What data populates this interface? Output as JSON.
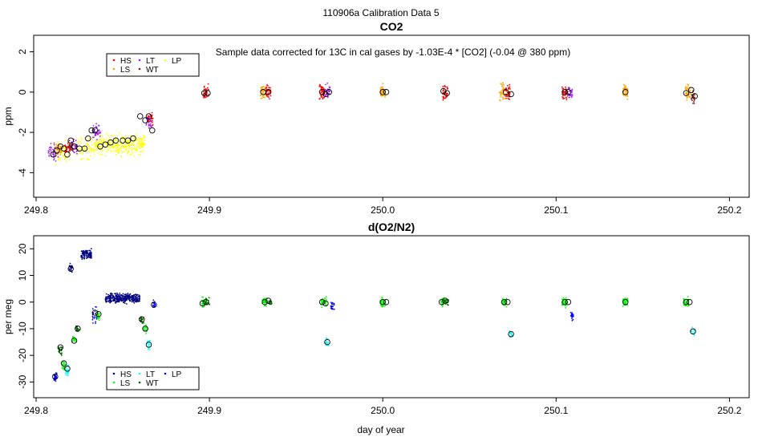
{
  "page_title": "110906a   Calibration Data 5",
  "x_axis_label": "day of year",
  "colors": {
    "HS": "#ff0000",
    "LS": "#ffa500",
    "LT": "#a020f0",
    "WT": "#8b1a1a",
    "LP": "#ffff00",
    "HS2": "#000080",
    "LS2": "#00ff00",
    "LT2": "#00ffff",
    "WT2": "#006400",
    "LP2": "#0000ff"
  },
  "chart_data": [
    {
      "type": "scatter",
      "title": "CO2",
      "annotation": "Sample data corrected for 13C in cal gases by -1.03E-4 * [CO2] (-0.04 @ 380 ppm)",
      "xlabel": "",
      "ylabel": "ppm",
      "xlim": [
        249.8,
        250.21
      ],
      "ylim": [
        -5.1,
        2.7
      ],
      "xticks": [
        249.8,
        249.9,
        250.0,
        250.1,
        250.2
      ],
      "xtick_labels": [
        "249.8",
        "249.9",
        "250.0",
        "250.1",
        "250.2"
      ],
      "yticks": [
        -4,
        -2,
        0,
        2
      ],
      "ytick_labels": [
        "-4",
        "-2",
        "0",
        "2"
      ],
      "legend": {
        "position": "top-left",
        "entries": [
          {
            "label": "HS",
            "color": "#ff0000"
          },
          {
            "label": "LS",
            "color": "#ffa500"
          },
          {
            "label": "LT",
            "color": "#a020f0"
          },
          {
            "label": "WT",
            "color": "#8b1a1a"
          },
          {
            "label": "LP",
            "color": "#ffff00"
          }
        ]
      },
      "clusters": [
        {
          "series": "LP",
          "x": 249.815,
          "y": -3.0,
          "spread_y": 0.8,
          "width": 0.009,
          "count": 55
        },
        {
          "series": "LP",
          "x": 249.828,
          "y": -2.8,
          "spread_y": 0.8,
          "width": 0.009,
          "count": 55
        },
        {
          "series": "LP",
          "x": 249.848,
          "y": -2.6,
          "spread_y": 0.7,
          "width": 0.03,
          "count": 320
        },
        {
          "series": "LT",
          "x": 249.81,
          "y": -3.0,
          "spread_y": 0.6,
          "width": 0.006,
          "count": 45
        },
        {
          "series": "LT",
          "x": 249.822,
          "y": -2.7,
          "spread_y": 0.5,
          "width": 0.004,
          "count": 40
        },
        {
          "series": "LT",
          "x": 249.835,
          "y": -2.0,
          "spread_y": 0.5,
          "width": 0.005,
          "count": 40
        },
        {
          "series": "HS",
          "x": 249.818,
          "y": -2.8,
          "spread_y": 0.4,
          "width": 0.003,
          "count": 30
        },
        {
          "series": "HS",
          "x": 249.866,
          "y": -1.4,
          "spread_y": 0.5,
          "width": 0.003,
          "count": 30
        },
        {
          "series": "LS",
          "x": 249.813,
          "y": -2.9,
          "spread_y": 0.4,
          "width": 0.003,
          "count": 30
        },
        {
          "series": "WT",
          "x": 249.82,
          "y": -2.7,
          "spread_y": 0.4,
          "width": 0.003,
          "count": 25
        },
        {
          "series": "LT",
          "x": 249.865,
          "y": -1.6,
          "spread_y": 0.5,
          "width": 0.003,
          "count": 30
        },
        {
          "series": "HS",
          "x": 249.898,
          "y": 0.0,
          "spread_y": 0.6,
          "width": 0.003,
          "count": 40
        },
        {
          "series": "LS",
          "x": 249.931,
          "y": 0.0,
          "spread_y": 0.5,
          "width": 0.003,
          "count": 40
        },
        {
          "series": "HS",
          "x": 249.934,
          "y": 0.0,
          "spread_y": 0.5,
          "width": 0.003,
          "count": 40
        },
        {
          "series": "HS",
          "x": 249.965,
          "y": 0.0,
          "spread_y": 0.6,
          "width": 0.003,
          "count": 40
        },
        {
          "series": "LT",
          "x": 249.968,
          "y": 0.0,
          "spread_y": 0.5,
          "width": 0.003,
          "count": 35
        },
        {
          "series": "LS",
          "x": 250.0,
          "y": 0.0,
          "spread_y": 0.5,
          "width": 0.003,
          "count": 40
        },
        {
          "series": "HS",
          "x": 250.036,
          "y": 0.0,
          "spread_y": 0.6,
          "width": 0.003,
          "count": 40
        },
        {
          "series": "LS",
          "x": 250.069,
          "y": 0.0,
          "spread_y": 0.6,
          "width": 0.003,
          "count": 40
        },
        {
          "series": "HS",
          "x": 250.072,
          "y": 0.0,
          "spread_y": 0.6,
          "width": 0.003,
          "count": 40
        },
        {
          "series": "HS",
          "x": 250.105,
          "y": 0.0,
          "spread_y": 0.6,
          "width": 0.003,
          "count": 40
        },
        {
          "series": "LT",
          "x": 250.108,
          "y": 0.0,
          "spread_y": 0.5,
          "width": 0.003,
          "count": 30
        },
        {
          "series": "LS",
          "x": 250.14,
          "y": 0.0,
          "spread_y": 0.5,
          "width": 0.003,
          "count": 40
        },
        {
          "series": "LS",
          "x": 250.176,
          "y": 0.0,
          "spread_y": 0.6,
          "width": 0.003,
          "count": 40
        },
        {
          "series": "WT",
          "x": 250.179,
          "y": -0.3,
          "spread_y": 0.5,
          "width": 0.002,
          "count": 25
        }
      ],
      "means": [
        {
          "x": 249.81,
          "y": -3.1
        },
        {
          "x": 249.812,
          "y": -2.9
        },
        {
          "x": 249.814,
          "y": -2.7
        },
        {
          "x": 249.816,
          "y": -2.8
        },
        {
          "x": 249.818,
          "y": -3.1
        },
        {
          "x": 249.82,
          "y": -2.4
        },
        {
          "x": 249.822,
          "y": -2.7
        },
        {
          "x": 249.825,
          "y": -2.8
        },
        {
          "x": 249.828,
          "y": -2.8
        },
        {
          "x": 249.83,
          "y": -2.3
        },
        {
          "x": 249.832,
          "y": -1.9
        },
        {
          "x": 249.834,
          "y": -1.9
        },
        {
          "x": 249.837,
          "y": -2.7
        },
        {
          "x": 249.84,
          "y": -2.6
        },
        {
          "x": 249.843,
          "y": -2.5
        },
        {
          "x": 249.846,
          "y": -2.4
        },
        {
          "x": 249.85,
          "y": -2.4
        },
        {
          "x": 249.853,
          "y": -2.4
        },
        {
          "x": 249.856,
          "y": -2.3
        },
        {
          "x": 249.86,
          "y": -1.2
        },
        {
          "x": 249.863,
          "y": -1.4
        },
        {
          "x": 249.865,
          "y": -1.2
        },
        {
          "x": 249.867,
          "y": -1.9
        },
        {
          "x": 249.897,
          "y": -0.05
        },
        {
          "x": 249.899,
          "y": -0.05
        },
        {
          "x": 249.931,
          "y": 0.0
        },
        {
          "x": 249.934,
          "y": 0.0
        },
        {
          "x": 249.965,
          "y": 0.0
        },
        {
          "x": 249.967,
          "y": -0.1
        },
        {
          "x": 249.969,
          "y": 0.0
        },
        {
          "x": 250.0,
          "y": 0.0
        },
        {
          "x": 250.002,
          "y": 0.0
        },
        {
          "x": 250.035,
          "y": 0.05
        },
        {
          "x": 250.037,
          "y": -0.05
        },
        {
          "x": 250.071,
          "y": 0.0
        },
        {
          "x": 250.074,
          "y": -0.1
        },
        {
          "x": 250.105,
          "y": 0.0
        },
        {
          "x": 250.107,
          "y": 0.0
        },
        {
          "x": 250.14,
          "y": 0.0
        },
        {
          "x": 250.175,
          "y": -0.05
        },
        {
          "x": 250.178,
          "y": 0.1
        },
        {
          "x": 250.18,
          "y": -0.2
        }
      ]
    },
    {
      "type": "scatter",
      "title": "d(O2/N2)",
      "annotation": "",
      "xlabel": "day of year",
      "ylabel": "per meg",
      "xlim": [
        249.8,
        250.21
      ],
      "ylim": [
        -35,
        24
      ],
      "xticks": [
        249.8,
        249.9,
        250.0,
        250.1,
        250.2
      ],
      "xtick_labels": [
        "249.8",
        "249.9",
        "250.0",
        "250.1",
        "250.2"
      ],
      "yticks": [
        -30,
        -20,
        -10,
        0,
        10,
        20
      ],
      "ytick_labels": [
        "-30",
        "-20",
        "-10",
        "0",
        "10",
        "20"
      ],
      "legend": {
        "position": "bottom-left",
        "entries": [
          {
            "label": "HS",
            "color": "#000080"
          },
          {
            "label": "LS",
            "color": "#00ff00"
          },
          {
            "label": "LT",
            "color": "#00ffff"
          },
          {
            "label": "WT",
            "color": "#006400"
          },
          {
            "label": "LP",
            "color": "#0000ff"
          }
        ]
      },
      "clusters": [
        {
          "series": "LP2",
          "x": 249.811,
          "y": -28.0,
          "spread_y": 3.0,
          "width": 0.002,
          "count": 25
        },
        {
          "series": "WT2",
          "x": 249.814,
          "y": -18.0,
          "spread_y": 2.5,
          "width": 0.002,
          "count": 25
        },
        {
          "series": "LS2",
          "x": 249.816,
          "y": -24.0,
          "spread_y": 3.0,
          "width": 0.002,
          "count": 25
        },
        {
          "series": "LT2",
          "x": 249.818,
          "y": -26.0,
          "spread_y": 3.0,
          "width": 0.002,
          "count": 20
        },
        {
          "series": "HS2",
          "x": 249.82,
          "y": 13.0,
          "spread_y": 2.0,
          "width": 0.002,
          "count": 20
        },
        {
          "series": "LS2",
          "x": 249.822,
          "y": -14.0,
          "spread_y": 2.5,
          "width": 0.002,
          "count": 20
        },
        {
          "series": "WT2",
          "x": 249.824,
          "y": -10.0,
          "spread_y": 2.0,
          "width": 0.002,
          "count": 20
        },
        {
          "series": "HS2",
          "x": 249.829,
          "y": 18.0,
          "spread_y": 2.5,
          "width": 0.006,
          "count": 100
        },
        {
          "series": "LP2",
          "x": 249.834,
          "y": -5.0,
          "spread_y": 4.0,
          "width": 0.003,
          "count": 25
        },
        {
          "series": "LS2",
          "x": 249.836,
          "y": -5.0,
          "spread_y": 3.0,
          "width": 0.002,
          "count": 20
        },
        {
          "series": "HS2",
          "x": 249.85,
          "y": 1.5,
          "spread_y": 2.5,
          "width": 0.02,
          "count": 320
        },
        {
          "series": "WT2",
          "x": 249.861,
          "y": -7.0,
          "spread_y": 2.0,
          "width": 0.002,
          "count": 20
        },
        {
          "series": "LS2",
          "x": 249.863,
          "y": -10.0,
          "spread_y": 2.5,
          "width": 0.002,
          "count": 20
        },
        {
          "series": "LT2",
          "x": 249.865,
          "y": -16.0,
          "spread_y": 3.0,
          "width": 0.002,
          "count": 20
        },
        {
          "series": "LP2",
          "x": 249.868,
          "y": -1.0,
          "spread_y": 2.0,
          "width": 0.002,
          "count": 15
        },
        {
          "series": "LS2",
          "x": 249.897,
          "y": 0.0,
          "spread_y": 2.5,
          "width": 0.003,
          "count": 40
        },
        {
          "series": "WT2",
          "x": 249.899,
          "y": 0.0,
          "spread_y": 2.0,
          "width": 0.002,
          "count": 15
        },
        {
          "series": "LS2",
          "x": 249.932,
          "y": 0.0,
          "spread_y": 2.5,
          "width": 0.003,
          "count": 40
        },
        {
          "series": "WT2",
          "x": 249.935,
          "y": 0.0,
          "spread_y": 2.0,
          "width": 0.002,
          "count": 15
        },
        {
          "series": "LS2",
          "x": 249.966,
          "y": 0.0,
          "spread_y": 2.5,
          "width": 0.003,
          "count": 40
        },
        {
          "series": "LT2",
          "x": 249.968,
          "y": -15.0,
          "spread_y": 2.5,
          "width": 0.002,
          "count": 15
        },
        {
          "series": "LP2",
          "x": 249.971,
          "y": -1.5,
          "spread_y": 2.0,
          "width": 0.002,
          "count": 20
        },
        {
          "series": "LS2",
          "x": 250.0,
          "y": 0.0,
          "spread_y": 2.5,
          "width": 0.003,
          "count": 40
        },
        {
          "series": "LS2",
          "x": 250.035,
          "y": 0.0,
          "spread_y": 2.5,
          "width": 0.003,
          "count": 40
        },
        {
          "series": "WT2",
          "x": 250.037,
          "y": 0.0,
          "spread_y": 2.0,
          "width": 0.002,
          "count": 15
        },
        {
          "series": "LS2",
          "x": 250.07,
          "y": 0.0,
          "spread_y": 2.5,
          "width": 0.003,
          "count": 40
        },
        {
          "series": "LT2",
          "x": 250.074,
          "y": -12.0,
          "spread_y": 2.5,
          "width": 0.002,
          "count": 15
        },
        {
          "series": "LS2",
          "x": 250.105,
          "y": 0.0,
          "spread_y": 2.5,
          "width": 0.003,
          "count": 40
        },
        {
          "series": "LP2",
          "x": 250.109,
          "y": -5.0,
          "spread_y": 2.5,
          "width": 0.002,
          "count": 20
        },
        {
          "series": "LS2",
          "x": 250.14,
          "y": 0.0,
          "spread_y": 2.5,
          "width": 0.003,
          "count": 40
        },
        {
          "series": "LS2",
          "x": 250.175,
          "y": 0.0,
          "spread_y": 2.5,
          "width": 0.003,
          "count": 40
        },
        {
          "series": "LT2",
          "x": 250.179,
          "y": -11.0,
          "spread_y": 2.5,
          "width": 0.002,
          "count": 15
        }
      ],
      "means": [
        {
          "x": 249.811,
          "y": -28
        },
        {
          "x": 249.814,
          "y": -17
        },
        {
          "x": 249.816,
          "y": -23
        },
        {
          "x": 249.818,
          "y": -25
        },
        {
          "x": 249.82,
          "y": 12.5
        },
        {
          "x": 249.822,
          "y": -14.5
        },
        {
          "x": 249.824,
          "y": -10
        },
        {
          "x": 249.834,
          "y": -4
        },
        {
          "x": 249.836,
          "y": -4.5
        },
        {
          "x": 249.861,
          "y": -6.5
        },
        {
          "x": 249.863,
          "y": -10
        },
        {
          "x": 249.865,
          "y": -16
        },
        {
          "x": 249.868,
          "y": -1
        },
        {
          "x": 249.896,
          "y": -0.5
        },
        {
          "x": 249.898,
          "y": 0.0
        },
        {
          "x": 249.932,
          "y": 0.0
        },
        {
          "x": 249.934,
          "y": 0.5
        },
        {
          "x": 249.965,
          "y": 0.0
        },
        {
          "x": 249.967,
          "y": -0.5
        },
        {
          "x": 249.968,
          "y": -15
        },
        {
          "x": 250.0,
          "y": 0.0
        },
        {
          "x": 250.002,
          "y": 0.0
        },
        {
          "x": 250.034,
          "y": 0.0
        },
        {
          "x": 250.036,
          "y": 0.5
        },
        {
          "x": 250.07,
          "y": 0.0
        },
        {
          "x": 250.072,
          "y": 0.0
        },
        {
          "x": 250.074,
          "y": -12
        },
        {
          "x": 250.105,
          "y": 0.0
        },
        {
          "x": 250.107,
          "y": 0.0
        },
        {
          "x": 250.14,
          "y": 0.0
        },
        {
          "x": 250.175,
          "y": 0.0
        },
        {
          "x": 250.177,
          "y": 0.0
        },
        {
          "x": 250.179,
          "y": -11
        }
      ]
    }
  ]
}
